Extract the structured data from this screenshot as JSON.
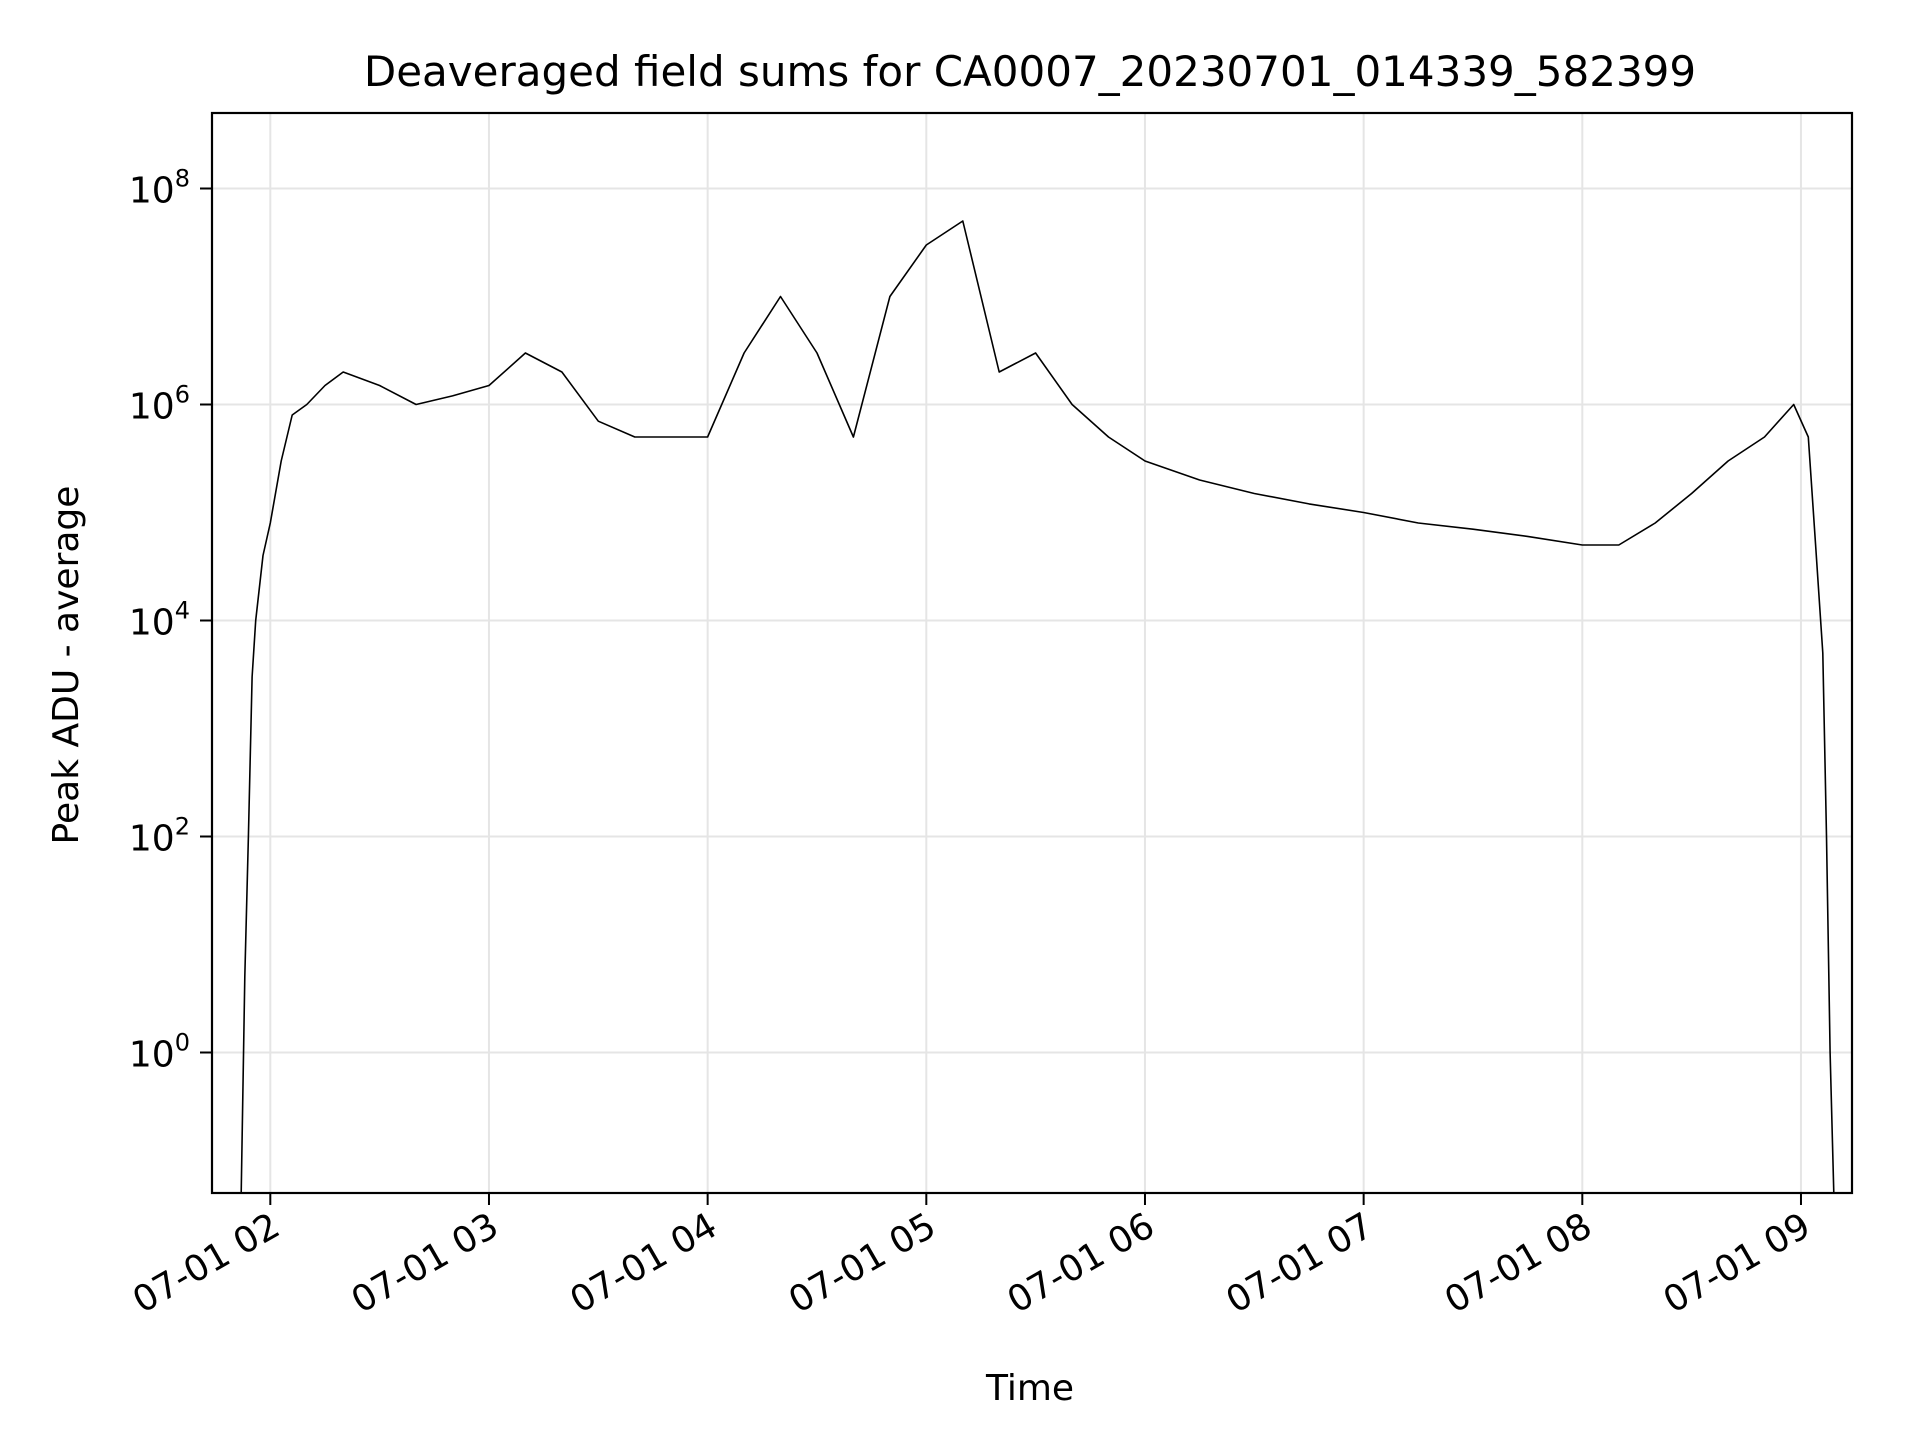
{
  "chart_data": {
    "type": "line",
    "title": "Deaveraged field sums for CA0007_20230701_014339_582399",
    "xlabel": "Time",
    "ylabel": "Peak ADU - average",
    "x_ticks": [
      "07-01 02",
      "07-01 03",
      "07-01 04",
      "07-01 05",
      "07-01 06",
      "07-01 07",
      "07-01 08",
      "07-01 09"
    ],
    "y_ticks": [
      {
        "base": "10",
        "exp": "0"
      },
      {
        "base": "10",
        "exp": "2"
      },
      {
        "base": "10",
        "exp": "4"
      },
      {
        "base": "10",
        "exp": "6"
      },
      {
        "base": "10",
        "exp": "8"
      }
    ],
    "xlim": [
      "2023-07-01 01:44",
      "2023-07-01 09:14"
    ],
    "y_scale": "log",
    "ylim": [
      0.05,
      500000000
    ],
    "grid": true,
    "line_color": "#000000",
    "grid_color": "#e5e5e5",
    "series": [
      {
        "time": [
          "2023-07-01 01:52",
          "2023-07-01 01:53",
          "2023-07-01 01:54",
          "2023-07-01 01:55",
          "2023-07-01 01:56",
          "2023-07-01 01:58",
          "2023-07-01 02:00",
          "2023-07-01 02:03",
          "2023-07-01 02:06",
          "2023-07-01 02:10",
          "2023-07-01 02:15",
          "2023-07-01 02:20",
          "2023-07-01 02:30",
          "2023-07-01 02:40",
          "2023-07-01 02:50",
          "2023-07-01 03:00",
          "2023-07-01 03:10",
          "2023-07-01 03:20",
          "2023-07-01 03:30",
          "2023-07-01 03:40",
          "2023-07-01 03:50",
          "2023-07-01 04:00",
          "2023-07-01 04:10",
          "2023-07-01 04:20",
          "2023-07-01 04:30",
          "2023-07-01 04:40",
          "2023-07-01 04:50",
          "2023-07-01 05:00",
          "2023-07-01 05:10",
          "2023-07-01 05:20",
          "2023-07-01 05:30",
          "2023-07-01 05:40",
          "2023-07-01 05:50",
          "2023-07-01 06:00",
          "2023-07-01 06:15",
          "2023-07-01 06:30",
          "2023-07-01 06:45",
          "2023-07-01 07:00",
          "2023-07-01 07:15",
          "2023-07-01 07:30",
          "2023-07-01 07:45",
          "2023-07-01 08:00",
          "2023-07-01 08:10",
          "2023-07-01 08:20",
          "2023-07-01 08:30",
          "2023-07-01 08:40",
          "2023-07-01 08:50",
          "2023-07-01 08:58",
          "2023-07-01 09:02",
          "2023-07-01 09:04",
          "2023-07-01 09:06",
          "2023-07-01 09:07",
          "2023-07-01 09:08",
          "2023-07-01 09:09"
        ],
        "values": [
          0.05,
          5,
          100,
          3000,
          10000,
          40000,
          80000,
          300000,
          800000,
          1000000,
          1500000,
          2000000,
          1500000,
          1000000,
          1200000,
          1500000,
          3000000,
          2000000,
          700000,
          500000,
          500000,
          500000,
          3000000,
          10000000,
          3000000,
          500000,
          10000000,
          30000000,
          50000000,
          2000000,
          3000000,
          1000000,
          500000,
          300000,
          200000,
          150000,
          120000,
          100000,
          80000,
          70000,
          60000,
          50000,
          50000,
          80000,
          150000,
          300000,
          500000,
          1000000,
          500000,
          50000,
          5000,
          100,
          1,
          0.05
        ]
      }
    ]
  }
}
